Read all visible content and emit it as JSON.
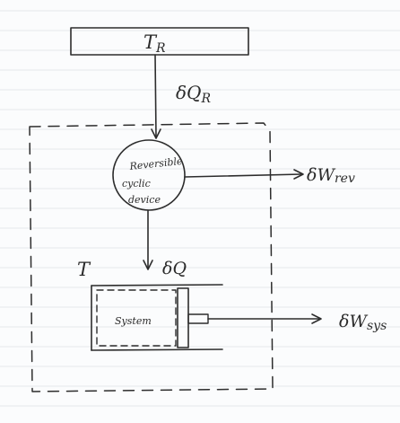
{
  "reservoir": {
    "label": "T",
    "subscript": "R"
  },
  "heat_in": {
    "symbol": "δQ",
    "subscript": "R"
  },
  "device": {
    "line1": "Reversible",
    "line2": "cyclic",
    "line3": "device"
  },
  "work_rev": {
    "symbol": "δW",
    "subscript": "rev"
  },
  "system_temp": {
    "label": "T"
  },
  "heat_sys": {
    "symbol": "δQ"
  },
  "system": {
    "label": "System"
  },
  "work_sys": {
    "symbol": "δW",
    "subscript": "sys"
  }
}
